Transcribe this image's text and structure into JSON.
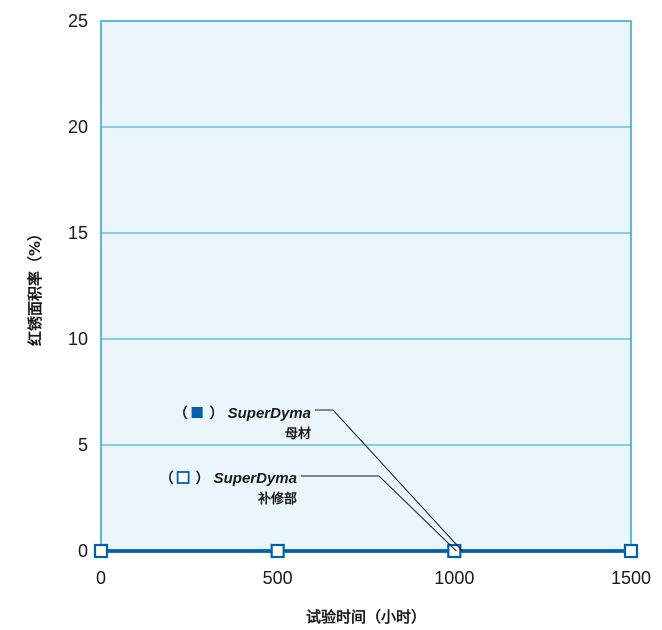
{
  "chart_data": {
    "type": "line",
    "title": "",
    "xlabel": "试验时间（小时）",
    "ylabel": "红锈面积率（%）",
    "xlim": [
      0,
      1500
    ],
    "ylim": [
      0,
      25
    ],
    "x_ticks": [
      "0",
      "500",
      "1000",
      "1500"
    ],
    "y_ticks": [
      "0",
      "5",
      "10",
      "15",
      "20",
      "25"
    ],
    "grid": true,
    "series": [
      {
        "x": [
          0,
          500,
          1000,
          1500
        ],
        "values": [
          0,
          0,
          0,
          0
        ],
        "marker": "filled-square",
        "color": "#0060b0"
      },
      {
        "x": [
          0,
          500,
          1000,
          1500
        ],
        "values": [
          0,
          0,
          0,
          0
        ],
        "marker": "open-square",
        "color": "#0060b0"
      }
    ],
    "annotations": [
      {
        "paren_open": "（",
        "paren_close": "）",
        "brand": "SuperDyma",
        "label": "母材",
        "marker": "filled-square",
        "points_to": [
          1000,
          0
        ]
      },
      {
        "paren_open": "（",
        "paren_close": "）",
        "brand": "SuperDyma",
        "label": "补修部",
        "marker": "open-square",
        "points_to": [
          1000,
          0
        ]
      }
    ],
    "colors": {
      "plot_bg": "#eaf6fb",
      "frame": "#29a3d9",
      "grid": "#29a3d9",
      "series": "#0060b0"
    }
  }
}
